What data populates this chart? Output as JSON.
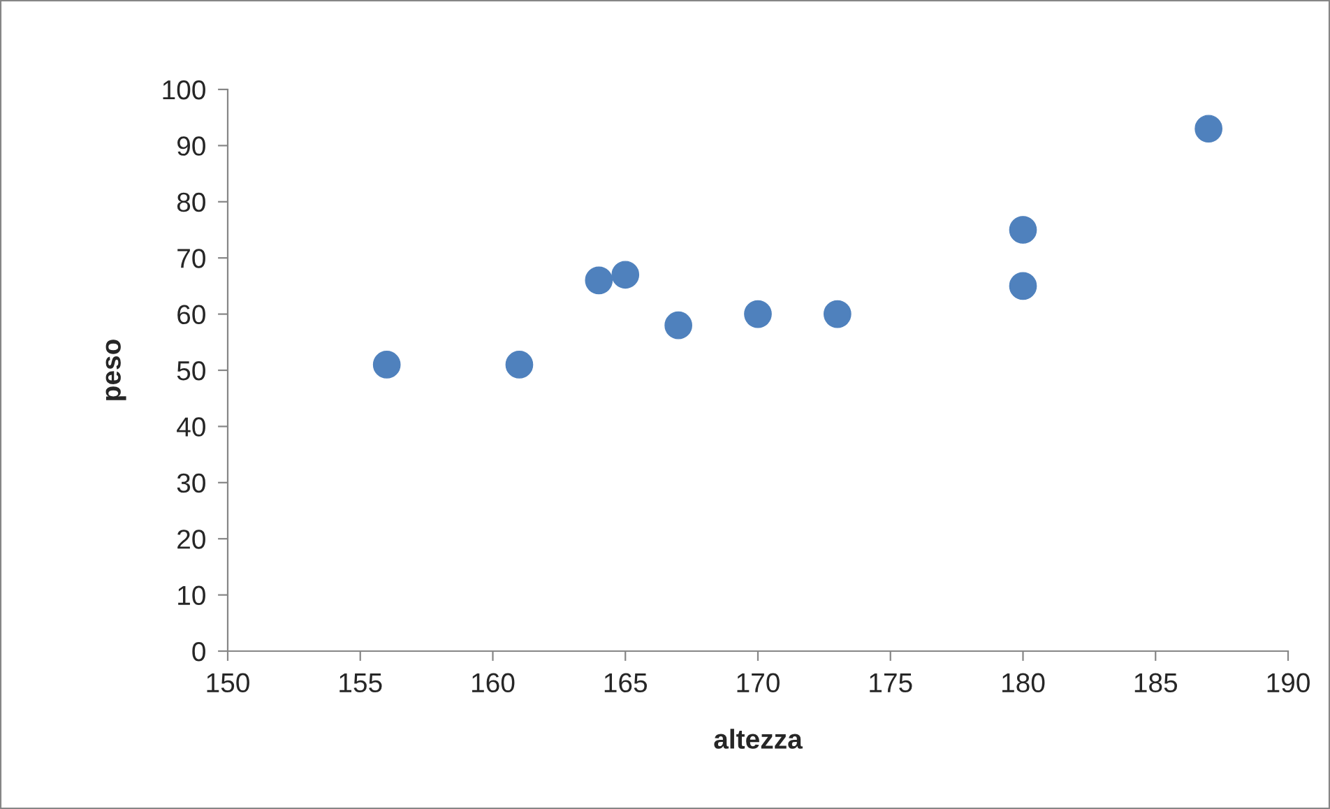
{
  "chart_data": {
    "type": "scatter",
    "xlabel": "altezza",
    "ylabel": "peso",
    "x": [
      156,
      161,
      164,
      165,
      167,
      170,
      173,
      180,
      180,
      187
    ],
    "series": [
      {
        "color": "#4f81bd",
        "values": [
          51,
          51,
          66,
          67,
          58,
          60,
          60,
          75,
          65,
          93
        ]
      }
    ],
    "xlim": [
      150,
      190
    ],
    "xticks": [
      150,
      155,
      160,
      165,
      170,
      175,
      180,
      185,
      190
    ],
    "ylim": [
      0,
      100
    ],
    "yticks": [
      0,
      10,
      20,
      30,
      40,
      50,
      60,
      70,
      80,
      90,
      100
    ],
    "grid": false,
    "legend": false,
    "marker": "circle"
  }
}
